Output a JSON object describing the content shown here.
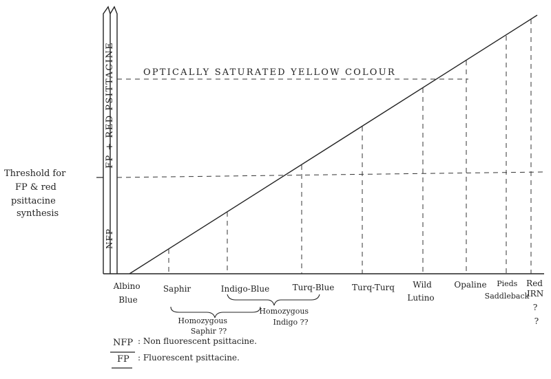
{
  "axis": {
    "bar_label_top": "FP + RED PSITTACINE",
    "bar_label_bottom": "NFP"
  },
  "threshold": {
    "lines": [
      "Threshold for",
      "FP & red",
      "psittacine",
      "synthesis"
    ]
  },
  "saturation_label": "OPTICALLY SATURATED YELLOW COLOUR",
  "categories": [
    {
      "lines": [
        "Albino",
        "Blue"
      ]
    },
    {
      "lines": [
        "Saphir"
      ]
    },
    {
      "lines": [
        "Indigo-Blue"
      ]
    },
    {
      "lines": [
        "Turq-Blue"
      ]
    },
    {
      "lines": [
        "Turq-Turq"
      ]
    },
    {
      "lines": [
        "Wild",
        "Lutino"
      ]
    },
    {
      "lines": [
        "Opaline"
      ]
    },
    {
      "lines": [
        "Pieds",
        "Saddleback"
      ]
    },
    {
      "lines": [
        "Red",
        "IRN",
        "?",
        "?"
      ]
    }
  ],
  "brackets": [
    {
      "lines": [
        "Homozygous",
        "Saphir ??"
      ]
    },
    {
      "lines": [
        "Homozygous",
        "Indigo ??"
      ]
    }
  ],
  "legend": [
    {
      "abbr": "NFP",
      "text": ": Non fluorescent psittacine."
    },
    {
      "abbr": "FP",
      "text": ": Fluorescent psittacine."
    }
  ]
}
